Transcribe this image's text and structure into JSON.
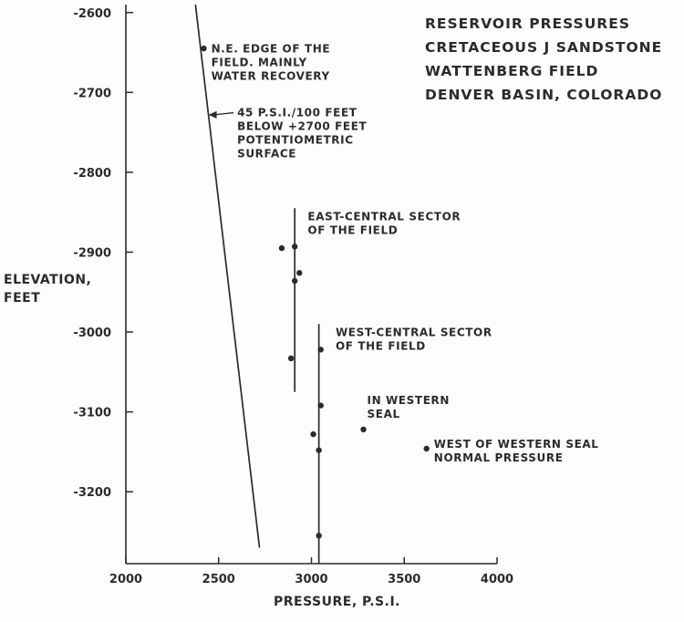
{
  "chart_data": {
    "type": "scatter",
    "title_lines": [
      "RESERVOIR PRESSURES",
      "CRETACEOUS J SANDSTONE",
      "WATTENBERG FIELD",
      "DENVER BASIN, COLORADO"
    ],
    "xlabel": "PRESSURE, P.S.I.",
    "ylabel_lines": [
      "ELEVATION,",
      "FEET"
    ],
    "xlim": [
      2000,
      4000
    ],
    "ylim": [
      -3290,
      -2590
    ],
    "x_ticks": [
      2000,
      2500,
      3000,
      3500,
      4000
    ],
    "y_ticks": [
      -2600,
      -2700,
      -2800,
      -2900,
      -3000,
      -3100,
      -3200
    ],
    "x_tick_labels": [
      "2000",
      "2500",
      "3000",
      "3500",
      "4000"
    ],
    "y_tick_labels": [
      "-2600",
      "-2700",
      "-2800",
      "-2900",
      "-3000",
      "-3100",
      "-3200"
    ],
    "grid": false,
    "points": [
      {
        "x": 2420,
        "y": -2645
      },
      {
        "x": 2840,
        "y": -2895
      },
      {
        "x": 2910,
        "y": -2893
      },
      {
        "x": 2935,
        "y": -2926
      },
      {
        "x": 2910,
        "y": -2936
      },
      {
        "x": 2890,
        "y": -3033
      },
      {
        "x": 3050,
        "y": -3022
      },
      {
        "x": 3050,
        "y": -3092
      },
      {
        "x": 3010,
        "y": -3128
      },
      {
        "x": 3040,
        "y": -3148
      },
      {
        "x": 3040,
        "y": -3255
      },
      {
        "x": 3280,
        "y": -3122
      },
      {
        "x": 3620,
        "y": -3146
      }
    ],
    "lines": [
      {
        "x1": 2375,
        "y1": -2590,
        "x2": 2720,
        "y2": -3270
      },
      {
        "x1": 2910,
        "y1": -2845,
        "x2": 2910,
        "y2": -3075
      },
      {
        "x1": 3040,
        "y1": -2990,
        "x2": 3040,
        "y2": -3290
      }
    ],
    "annotations": [
      {
        "lines": [
          "N.E. EDGE OF THE",
          "FIELD. MAINLY",
          "WATER RECOVERY"
        ],
        "x": 2460,
        "y": -2650
      },
      {
        "lines": [
          "45 P.S.I./100 FEET",
          "BELOW +2700 FEET",
          "POTENTIOMETRIC",
          "SURFACE"
        ],
        "x": 2600,
        "y": -2730,
        "arrow_to": {
          "x": 2445,
          "y": -2728
        }
      },
      {
        "lines": [
          "EAST-CENTRAL SECTOR",
          "OF THE FIELD"
        ],
        "x": 2980,
        "y": -2860
      },
      {
        "lines": [
          "WEST-CENTRAL SECTOR",
          "OF THE FIELD"
        ],
        "x": 3130,
        "y": -3005
      },
      {
        "lines": [
          "IN WESTERN",
          "SEAL"
        ],
        "x": 3300,
        "y": -3090
      },
      {
        "lines": [
          "WEST OF WESTERN SEAL",
          "NORMAL PRESSURE"
        ],
        "x": 3660,
        "y": -3145
      }
    ]
  }
}
